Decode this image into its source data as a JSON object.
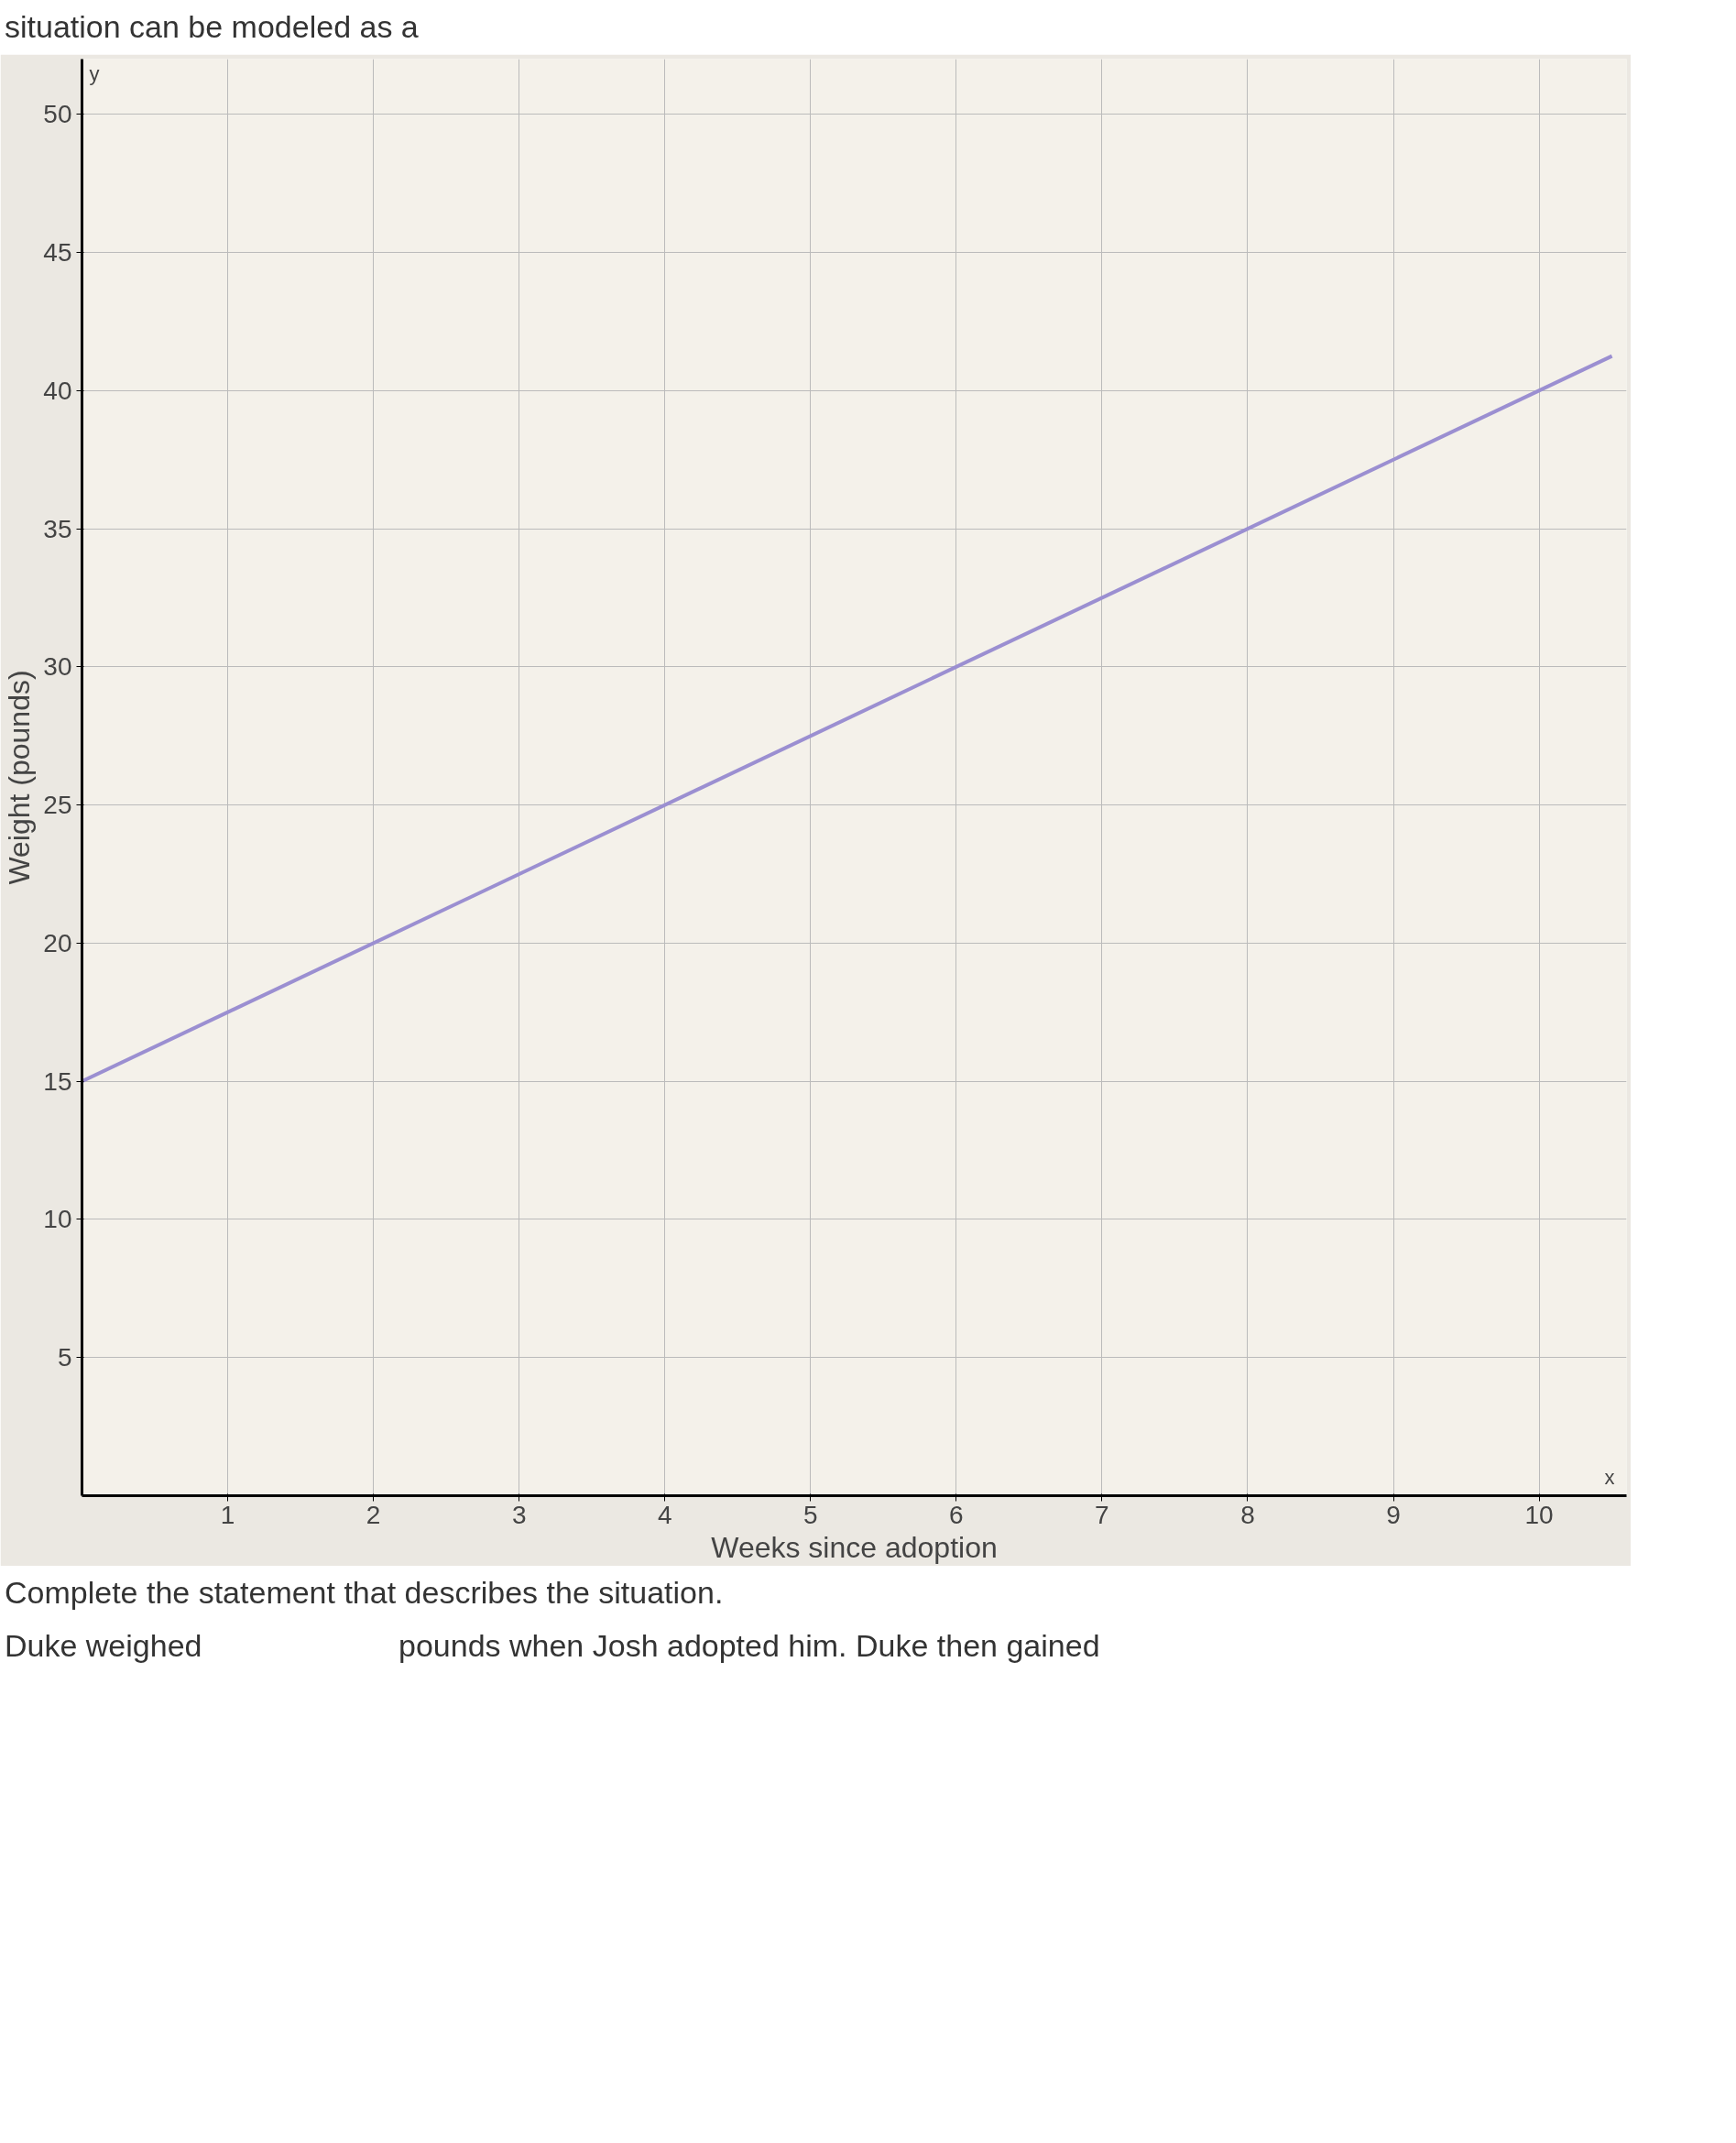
{
  "chart_data": {
    "type": "line",
    "xlabel": "Weeks since adoption",
    "ylabel": "Weight (pounds)",
    "x": [
      0,
      10.5
    ],
    "series": [
      {
        "color": "#9b8fd1",
        "values": [
          15,
          41.25
        ]
      }
    ],
    "xlim": [
      0,
      10.6
    ],
    "xticks": [
      1,
      2,
      3,
      4,
      5,
      6,
      7,
      8,
      9,
      10
    ],
    "ylim": [
      0,
      52
    ],
    "yticks": [
      5,
      10,
      15,
      20,
      25,
      30,
      35,
      40,
      45,
      50
    ],
    "grid": true,
    "marker": "none",
    "line_style": "solid",
    "annotations": [
      "situation can be modeled as a",
      "y",
      "x",
      "Complete the statement that describes the situation.",
      "Duke weighed",
      "pounds when Josh adopted him. Duke then gained"
    ]
  }
}
